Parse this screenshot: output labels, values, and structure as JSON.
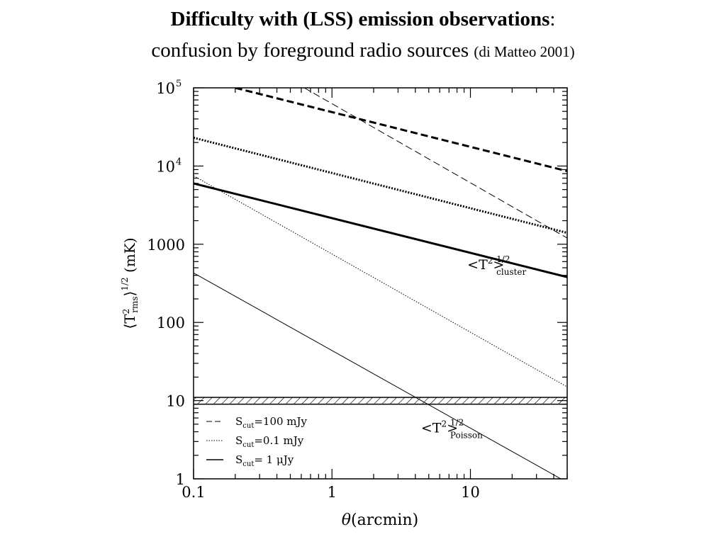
{
  "slide": {
    "title_bold": "Difficulty with (LSS) emission observations",
    "title_colon": ":",
    "subtitle": "confusion by foreground radio sources",
    "citation": "(di Matteo 2001)"
  },
  "chart_data": {
    "type": "line",
    "x_scale": "log",
    "y_scale": "log",
    "xlim": [
      0.1,
      50
    ],
    "ylim": [
      1,
      100000
    ],
    "grid": false,
    "xlabel": {
      "prefix": "θ",
      "rest": "(arcmin)"
    },
    "ylabel": {
      "main": "⟨T",
      "sup": "2",
      "sub": "rms",
      "close": "⟩",
      "exp": "1/2",
      "unit": "(mK)"
    },
    "x_ticks": [
      {
        "value": 0.1,
        "label": "0.1"
      },
      {
        "value": 1,
        "label": "1"
      },
      {
        "value": 10,
        "label": "10"
      }
    ],
    "y_ticks": [
      {
        "value": 1,
        "label": "1"
      },
      {
        "value": 10,
        "label": "10"
      },
      {
        "value": 100,
        "label": "100"
      },
      {
        "value": 1000,
        "label": "1000"
      },
      {
        "value": 10000,
        "label": "10",
        "exp": "4"
      },
      {
        "value": 100000,
        "label": "10",
        "exp": "5"
      }
    ],
    "series": [
      {
        "style": "dashed-thick",
        "x": [
          0.2,
          50
        ],
        "y": [
          100000,
          8600
        ]
      },
      {
        "style": "dashed-thin",
        "x": [
          0.63,
          50
        ],
        "y": [
          100000,
          1200
        ]
      },
      {
        "style": "dotted-thick",
        "x": [
          0.1,
          50
        ],
        "y": [
          23000,
          1400
        ]
      },
      {
        "style": "dotted-thin",
        "x": [
          0.1,
          50
        ],
        "y": [
          7500,
          15
        ]
      },
      {
        "style": "solid-thick",
        "x": [
          0.1,
          50
        ],
        "y": [
          6000,
          380
        ]
      },
      {
        "style": "solid-thin",
        "x": [
          0.1,
          45
        ],
        "y": [
          430,
          1
        ]
      }
    ],
    "band": {
      "y_low": 9,
      "y_high": 11
    },
    "annotations": {
      "cluster": {
        "main": "<T",
        "sup": "2",
        "close": ">",
        "exp": "1/2",
        "sub": "cluster",
        "x": 9.5,
        "y": 480
      },
      "poisson": {
        "main": "<T",
        "sup": "2",
        "close": ">",
        "exp": "1/2",
        "sub": "Poisson",
        "x": 4.4,
        "y": 3.9
      }
    },
    "legend": {
      "placement": "bottom-left",
      "entries": [
        {
          "style": "dashed",
          "sym": "S",
          "sub": "cut",
          "value": "=100 mJy"
        },
        {
          "style": "dotted",
          "sym": "S",
          "sub": "cut",
          "value": "=0.1 mJy"
        },
        {
          "style": "solid",
          "sym": "S",
          "sub": "cut",
          "value": "= 1 μJy"
        }
      ]
    }
  }
}
